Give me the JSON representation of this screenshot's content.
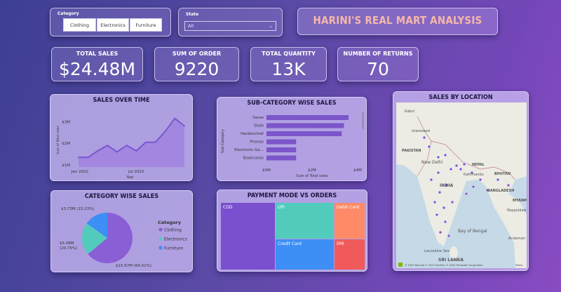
{
  "slicers": {
    "category_label": "Category",
    "category_options": [
      "Clothing",
      "Electronics",
      "Furniture"
    ],
    "state_label": "State",
    "state_value": "All"
  },
  "header": {
    "title": "HARINI'S REAL MART ANALYSIS"
  },
  "kpis": [
    {
      "label": "TOTAL SALES",
      "value": "$24.48M"
    },
    {
      "label": "SUM OF ORDER",
      "value": "9220"
    },
    {
      "label": "TOTAL QUANTITY",
      "value": "13K"
    },
    {
      "label": "NUMBER OF RETURNS",
      "value": "70"
    }
  ],
  "colors": {
    "accent_purple": "#8a6bd6",
    "teal": "#52cbbd",
    "blue": "#3d8ef5",
    "orange": "#ff8a67",
    "red": "#f05a5a",
    "title_text": "#f5b7a9"
  },
  "chart_data": [
    {
      "type": "area",
      "title": "SALES OVER TIME",
      "xlabel": "Year",
      "ylabel": "Sum of Total sales",
      "x_ticks": [
        "Jan 2022",
        "Jul 2022"
      ],
      "y_ticks": [
        "$1M",
        "$2M",
        "$3M"
      ],
      "ylim": [
        0.9,
        3.4
      ],
      "x": [
        "2022-01",
        "2022-02",
        "2022-03",
        "2022-04",
        "2022-05",
        "2022-06",
        "2022-07",
        "2022-08",
        "2022-09",
        "2022-10",
        "2022-11",
        "2022-12"
      ],
      "values": [
        1.35,
        1.35,
        1.65,
        1.9,
        1.6,
        1.9,
        1.65,
        2.05,
        2.05,
        2.55,
        3.15,
        2.8
      ]
    },
    {
      "type": "bar",
      "orientation": "horizontal",
      "title": "SUB-CATEGORY WISE SALES",
      "xlabel": "Sum of Total sales",
      "ylabel": "Sub-Category",
      "categories": [
        "Saree",
        "Stole",
        "Hankerchief",
        "Phones",
        "Electronic Ga...",
        "Bookcases"
      ],
      "values": [
        3.6,
        3.4,
        3.3,
        1.3,
        1.3,
        1.3
      ],
      "x_ticks": [
        "$0M",
        "$2M",
        "$4M"
      ],
      "xlim": [
        0,
        4
      ]
    },
    {
      "type": "pie",
      "title": "CATEGORY WISE SALES",
      "legend_title": "Category",
      "labels": [
        "Clothing",
        "Electronics",
        "Furniture"
      ],
      "values": [
        15.67,
        5.08,
        3.73
      ],
      "data_labels": [
        "$15.67M (64.01%)",
        "$5.08M (20.75%)",
        "$3.73M (15.23%)"
      ],
      "colors": [
        "#8a5fd6",
        "#52cbbd",
        "#3d8ef5"
      ],
      "legend_position": "right"
    },
    {
      "type": "treemap",
      "title": "PAYMENT MODE VS ORDERS",
      "labels": [
        "COD",
        "UPI",
        "Debit Card",
        "Credit Card",
        "EMI"
      ],
      "values": [
        3200,
        2300,
        1400,
        1500,
        820
      ]
    }
  ],
  "map": {
    "title": "SALES BY LOCATION",
    "labels": [
      "Kabul",
      "Islamabad",
      "PAKISTAN",
      "New Delhi",
      "NEPAL",
      "Kathmandu",
      "BHUTAN",
      "INDIA",
      "BANGLADESH",
      "MYANMA",
      "Naypyidaw",
      "Bay of Bengal",
      "Andaman Se",
      "SRI LANKA",
      "Laccadive Sea"
    ],
    "attribution": "© 2023 Navinfo  © 2023 TomTom  © 2024 Microsoft Corporation",
    "terms": "Terms"
  }
}
